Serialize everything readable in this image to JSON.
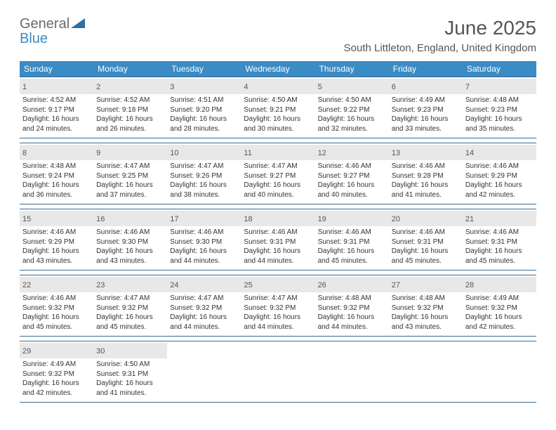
{
  "logo": {
    "general": "General",
    "blue": "Blue"
  },
  "title": "June 2025",
  "location": "South Littleton, England, United Kingdom",
  "colors": {
    "header_bg": "#3b8bc4",
    "border": "#3b6b94",
    "daynum_bg": "#e8e8e8",
    "text": "#333333",
    "title_text": "#555555"
  },
  "day_names": [
    "Sunday",
    "Monday",
    "Tuesday",
    "Wednesday",
    "Thursday",
    "Friday",
    "Saturday"
  ],
  "weeks": [
    [
      {
        "n": "1",
        "sunrise": "Sunrise: 4:52 AM",
        "sunset": "Sunset: 9:17 PM",
        "day1": "Daylight: 16 hours",
        "day2": "and 24 minutes."
      },
      {
        "n": "2",
        "sunrise": "Sunrise: 4:52 AM",
        "sunset": "Sunset: 9:18 PM",
        "day1": "Daylight: 16 hours",
        "day2": "and 26 minutes."
      },
      {
        "n": "3",
        "sunrise": "Sunrise: 4:51 AM",
        "sunset": "Sunset: 9:20 PM",
        "day1": "Daylight: 16 hours",
        "day2": "and 28 minutes."
      },
      {
        "n": "4",
        "sunrise": "Sunrise: 4:50 AM",
        "sunset": "Sunset: 9:21 PM",
        "day1": "Daylight: 16 hours",
        "day2": "and 30 minutes."
      },
      {
        "n": "5",
        "sunrise": "Sunrise: 4:50 AM",
        "sunset": "Sunset: 9:22 PM",
        "day1": "Daylight: 16 hours",
        "day2": "and 32 minutes."
      },
      {
        "n": "6",
        "sunrise": "Sunrise: 4:49 AM",
        "sunset": "Sunset: 9:23 PM",
        "day1": "Daylight: 16 hours",
        "day2": "and 33 minutes."
      },
      {
        "n": "7",
        "sunrise": "Sunrise: 4:48 AM",
        "sunset": "Sunset: 9:23 PM",
        "day1": "Daylight: 16 hours",
        "day2": "and 35 minutes."
      }
    ],
    [
      {
        "n": "8",
        "sunrise": "Sunrise: 4:48 AM",
        "sunset": "Sunset: 9:24 PM",
        "day1": "Daylight: 16 hours",
        "day2": "and 36 minutes."
      },
      {
        "n": "9",
        "sunrise": "Sunrise: 4:47 AM",
        "sunset": "Sunset: 9:25 PM",
        "day1": "Daylight: 16 hours",
        "day2": "and 37 minutes."
      },
      {
        "n": "10",
        "sunrise": "Sunrise: 4:47 AM",
        "sunset": "Sunset: 9:26 PM",
        "day1": "Daylight: 16 hours",
        "day2": "and 38 minutes."
      },
      {
        "n": "11",
        "sunrise": "Sunrise: 4:47 AM",
        "sunset": "Sunset: 9:27 PM",
        "day1": "Daylight: 16 hours",
        "day2": "and 40 minutes."
      },
      {
        "n": "12",
        "sunrise": "Sunrise: 4:46 AM",
        "sunset": "Sunset: 9:27 PM",
        "day1": "Daylight: 16 hours",
        "day2": "and 40 minutes."
      },
      {
        "n": "13",
        "sunrise": "Sunrise: 4:46 AM",
        "sunset": "Sunset: 9:28 PM",
        "day1": "Daylight: 16 hours",
        "day2": "and 41 minutes."
      },
      {
        "n": "14",
        "sunrise": "Sunrise: 4:46 AM",
        "sunset": "Sunset: 9:29 PM",
        "day1": "Daylight: 16 hours",
        "day2": "and 42 minutes."
      }
    ],
    [
      {
        "n": "15",
        "sunrise": "Sunrise: 4:46 AM",
        "sunset": "Sunset: 9:29 PM",
        "day1": "Daylight: 16 hours",
        "day2": "and 43 minutes."
      },
      {
        "n": "16",
        "sunrise": "Sunrise: 4:46 AM",
        "sunset": "Sunset: 9:30 PM",
        "day1": "Daylight: 16 hours",
        "day2": "and 43 minutes."
      },
      {
        "n": "17",
        "sunrise": "Sunrise: 4:46 AM",
        "sunset": "Sunset: 9:30 PM",
        "day1": "Daylight: 16 hours",
        "day2": "and 44 minutes."
      },
      {
        "n": "18",
        "sunrise": "Sunrise: 4:46 AM",
        "sunset": "Sunset: 9:31 PM",
        "day1": "Daylight: 16 hours",
        "day2": "and 44 minutes."
      },
      {
        "n": "19",
        "sunrise": "Sunrise: 4:46 AM",
        "sunset": "Sunset: 9:31 PM",
        "day1": "Daylight: 16 hours",
        "day2": "and 45 minutes."
      },
      {
        "n": "20",
        "sunrise": "Sunrise: 4:46 AM",
        "sunset": "Sunset: 9:31 PM",
        "day1": "Daylight: 16 hours",
        "day2": "and 45 minutes."
      },
      {
        "n": "21",
        "sunrise": "Sunrise: 4:46 AM",
        "sunset": "Sunset: 9:31 PM",
        "day1": "Daylight: 16 hours",
        "day2": "and 45 minutes."
      }
    ],
    [
      {
        "n": "22",
        "sunrise": "Sunrise: 4:46 AM",
        "sunset": "Sunset: 9:32 PM",
        "day1": "Daylight: 16 hours",
        "day2": "and 45 minutes."
      },
      {
        "n": "23",
        "sunrise": "Sunrise: 4:47 AM",
        "sunset": "Sunset: 9:32 PM",
        "day1": "Daylight: 16 hours",
        "day2": "and 45 minutes."
      },
      {
        "n": "24",
        "sunrise": "Sunrise: 4:47 AM",
        "sunset": "Sunset: 9:32 PM",
        "day1": "Daylight: 16 hours",
        "day2": "and 44 minutes."
      },
      {
        "n": "25",
        "sunrise": "Sunrise: 4:47 AM",
        "sunset": "Sunset: 9:32 PM",
        "day1": "Daylight: 16 hours",
        "day2": "and 44 minutes."
      },
      {
        "n": "26",
        "sunrise": "Sunrise: 4:48 AM",
        "sunset": "Sunset: 9:32 PM",
        "day1": "Daylight: 16 hours",
        "day2": "and 44 minutes."
      },
      {
        "n": "27",
        "sunrise": "Sunrise: 4:48 AM",
        "sunset": "Sunset: 9:32 PM",
        "day1": "Daylight: 16 hours",
        "day2": "and 43 minutes."
      },
      {
        "n": "28",
        "sunrise": "Sunrise: 4:49 AM",
        "sunset": "Sunset: 9:32 PM",
        "day1": "Daylight: 16 hours",
        "day2": "and 42 minutes."
      }
    ],
    [
      {
        "n": "29",
        "sunrise": "Sunrise: 4:49 AM",
        "sunset": "Sunset: 9:32 PM",
        "day1": "Daylight: 16 hours",
        "day2": "and 42 minutes."
      },
      {
        "n": "30",
        "sunrise": "Sunrise: 4:50 AM",
        "sunset": "Sunset: 9:31 PM",
        "day1": "Daylight: 16 hours",
        "day2": "and 41 minutes."
      },
      null,
      null,
      null,
      null,
      null
    ]
  ]
}
